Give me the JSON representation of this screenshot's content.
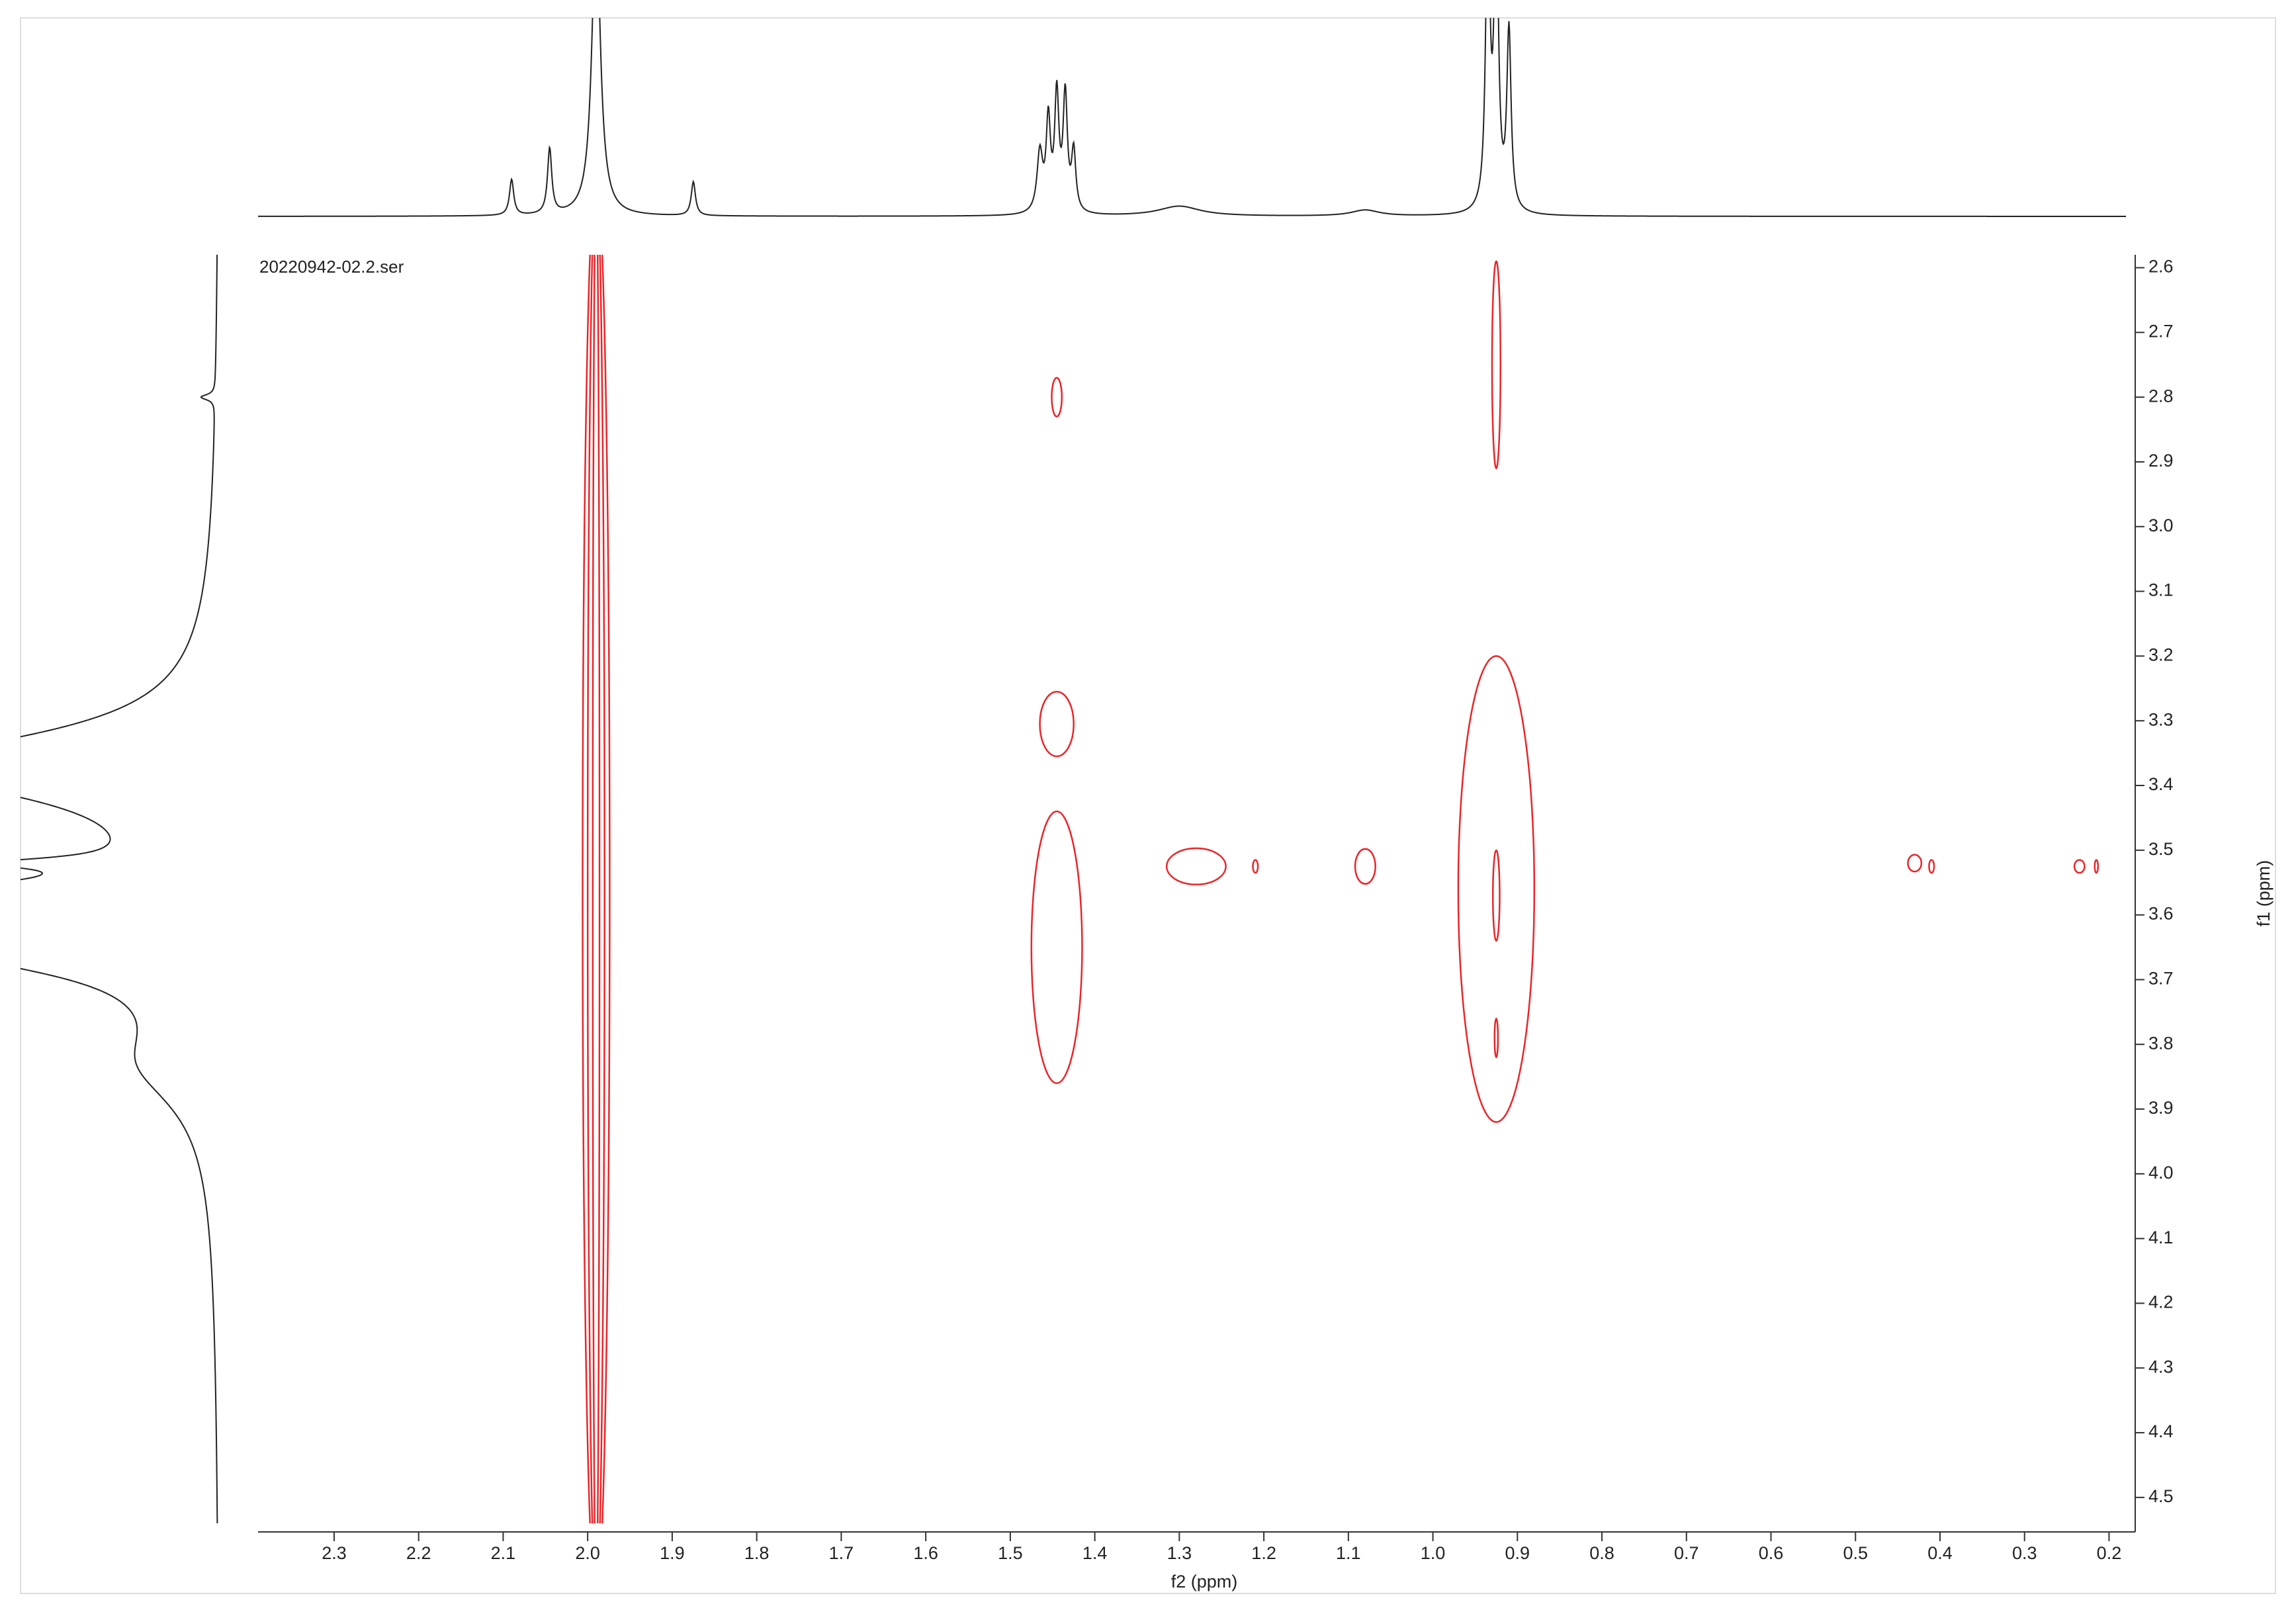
{
  "chart_data": {
    "type": "contour",
    "title": "20220942-02.2.ser",
    "x_label": "f2 (ppm)",
    "y_label": "f1 (ppm)",
    "xlim": [
      2.39,
      0.18
    ],
    "ylim": [
      2.58,
      4.54
    ],
    "xticks": [
      2.3,
      2.2,
      2.1,
      {
        "value": 2,
        "label": "2.0"
      },
      1.9,
      1.8,
      1.7,
      1.6,
      1.5,
      1.4,
      1.3,
      1.2,
      1.1,
      {
        "value": 1,
        "label": "1.0"
      },
      0.9,
      0.8,
      0.7,
      0.6,
      0.5,
      0.4,
      0.3,
      0.2
    ],
    "yticks": [
      2.6,
      2.7,
      2.8,
      2.9,
      {
        "value": 3,
        "label": "3.0"
      },
      3.1,
      3.2,
      3.3,
      3.4,
      3.5,
      3.6,
      3.7,
      3.8,
      3.9,
      {
        "value": 4,
        "label": "4.0"
      },
      4.1,
      4.2,
      4.3,
      4.4,
      4.5
    ],
    "color": "#e8262a",
    "peaks": [
      {
        "x": 1.99,
        "y": 3.56,
        "rx": 0.016,
        "ry": 1.1
      },
      {
        "x": 1.99,
        "y": 3.56,
        "rx": 0.01,
        "ry": 1.1
      },
      {
        "x": 1.99,
        "y": 3.56,
        "rx": 0.004,
        "ry": 1.1
      },
      {
        "x": 1.445,
        "y": 2.8,
        "rx": 0.006,
        "ry": 0.03
      },
      {
        "x": 0.925,
        "y": 2.75,
        "rx": 0.005,
        "ry": 0.16
      },
      {
        "x": 1.445,
        "y": 3.305,
        "rx": 0.02,
        "ry": 0.05
      },
      {
        "x": 1.445,
        "y": 3.65,
        "rx": 0.03,
        "ry": 0.21
      },
      {
        "x": 1.28,
        "y": 3.525,
        "rx": 0.035,
        "ry": 0.028
      },
      {
        "x": 1.21,
        "y": 3.525,
        "rx": 0.003,
        "ry": 0.01
      },
      {
        "x": 1.08,
        "y": 3.525,
        "rx": 0.012,
        "ry": 0.027
      },
      {
        "x": 0.925,
        "y": 3.56,
        "rx": 0.045,
        "ry": 0.36
      },
      {
        "x": 0.925,
        "y": 3.57,
        "rx": 0.004,
        "ry": 0.07
      },
      {
        "x": 0.925,
        "y": 3.79,
        "rx": 0.002,
        "ry": 0.03
      },
      {
        "x": 0.43,
        "y": 3.52,
        "rx": 0.008,
        "ry": 0.013
      },
      {
        "x": 0.41,
        "y": 3.525,
        "rx": 0.003,
        "ry": 0.01
      },
      {
        "x": 0.235,
        "y": 3.525,
        "rx": 0.006,
        "ry": 0.01
      },
      {
        "x": 0.215,
        "y": 3.525,
        "rx": 0.002,
        "ry": 0.01
      }
    ],
    "f2_projection": [
      {
        "x": 2.09,
        "height": 0.18,
        "width": 0.003
      },
      {
        "x": 2.045,
        "height": 0.33,
        "width": 0.003
      },
      {
        "x": 1.99,
        "height": 1.5,
        "width": 0.006
      },
      {
        "x": 1.875,
        "height": 0.17,
        "width": 0.003
      },
      {
        "x": 1.465,
        "height": 0.3,
        "width": 0.004
      },
      {
        "x": 1.455,
        "height": 0.45,
        "width": 0.003
      },
      {
        "x": 1.445,
        "height": 0.58,
        "width": 0.003
      },
      {
        "x": 1.435,
        "height": 0.58,
        "width": 0.003
      },
      {
        "x": 1.425,
        "height": 0.3,
        "width": 0.003
      },
      {
        "x": 1.3,
        "height": 0.05,
        "width": 0.03
      },
      {
        "x": 1.08,
        "height": 0.03,
        "width": 0.02
      },
      {
        "x": 0.935,
        "height": 1.5,
        "width": 0.003
      },
      {
        "x": 0.925,
        "height": 1.5,
        "width": 0.003
      },
      {
        "x": 0.91,
        "height": 0.9,
        "width": 0.003
      }
    ],
    "f1_projection": [
      {
        "y": 2.8,
        "height": 0.07,
        "width": 0.005
      },
      {
        "y": 3.37,
        "height": 1.5,
        "width": 0.06
      },
      {
        "y": 3.52,
        "height": 0.6,
        "width": 0.01
      },
      {
        "y": 3.57,
        "height": 1.3,
        "width": 0.02
      },
      {
        "y": 3.65,
        "height": 1.2,
        "width": 0.05
      },
      {
        "y": 3.83,
        "height": 0.3,
        "width": 0.08
      }
    ]
  }
}
